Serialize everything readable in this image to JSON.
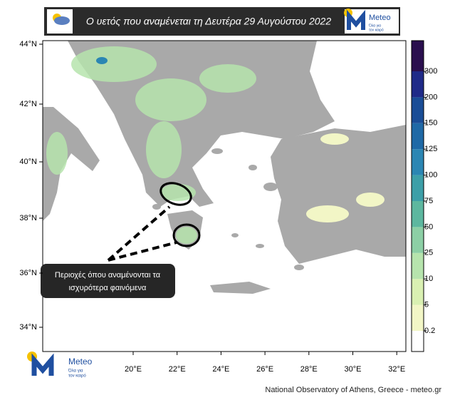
{
  "header": {
    "title": "Ο υετός που αναμένεται τη Δευτέρα 29 Αυγούστου 2022",
    "logo_text": "Meteo",
    "logo_subtext": [
      "Όλα για",
      "τον καιρό"
    ]
  },
  "map": {
    "lat_labels": [
      "44°N",
      "42°N",
      "40°N",
      "38°N",
      "36°N",
      "34°N"
    ],
    "lon_labels": [
      "20°E",
      "22°E",
      "24°E",
      "26°E",
      "28°E",
      "30°E",
      "32°E"
    ]
  },
  "legend": {
    "levels": [
      0.2,
      5,
      10,
      25,
      50,
      75,
      100,
      125,
      150,
      200,
      300
    ],
    "colors": [
      "#ffffff",
      "#f2f6c6",
      "#d9f0b2",
      "#b6e4ad",
      "#8ccfa5",
      "#5db79f",
      "#3d9fa8",
      "#2b86b3",
      "#1f69a6",
      "#1a4d96",
      "#1f2a88",
      "#2a0f4e"
    ]
  },
  "annotation": [
    "Περιοχές όπου αναμένονται τα",
    "ισχυρότερα φαινόμενα"
  ],
  "footer": "National Observatory of Athens, Greece - meteo.gr"
}
